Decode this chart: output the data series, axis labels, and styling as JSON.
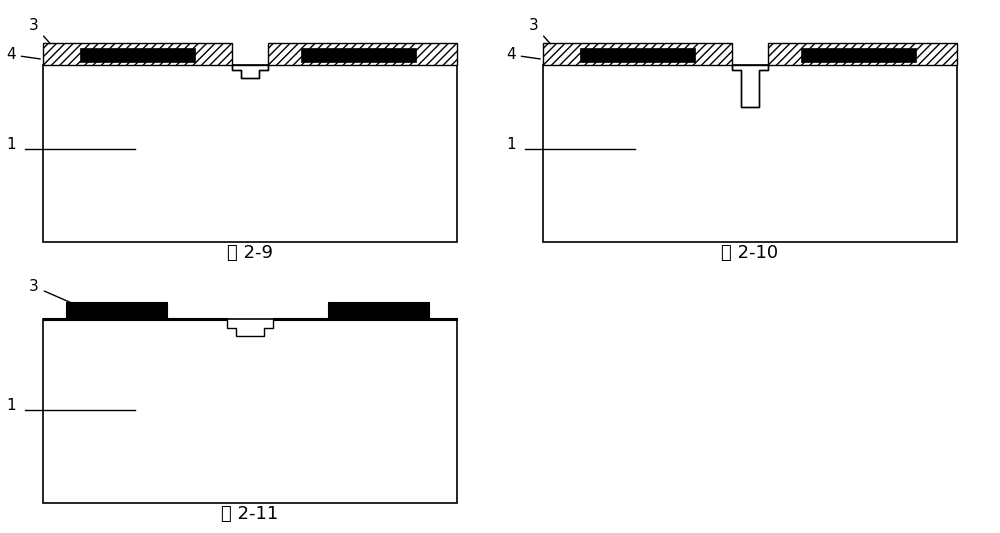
{
  "background_color": "#ffffff",
  "substrate_color": "#ffffff",
  "hatch_pattern": "////",
  "black_block_color": "#000000",
  "outline_color": "#000000",
  "label_color": "#000000",
  "fig_labels": [
    "图 2-9",
    "图 2-10",
    "图 2-11"
  ],
  "font_size_label": 13,
  "font_size_annot": 11
}
